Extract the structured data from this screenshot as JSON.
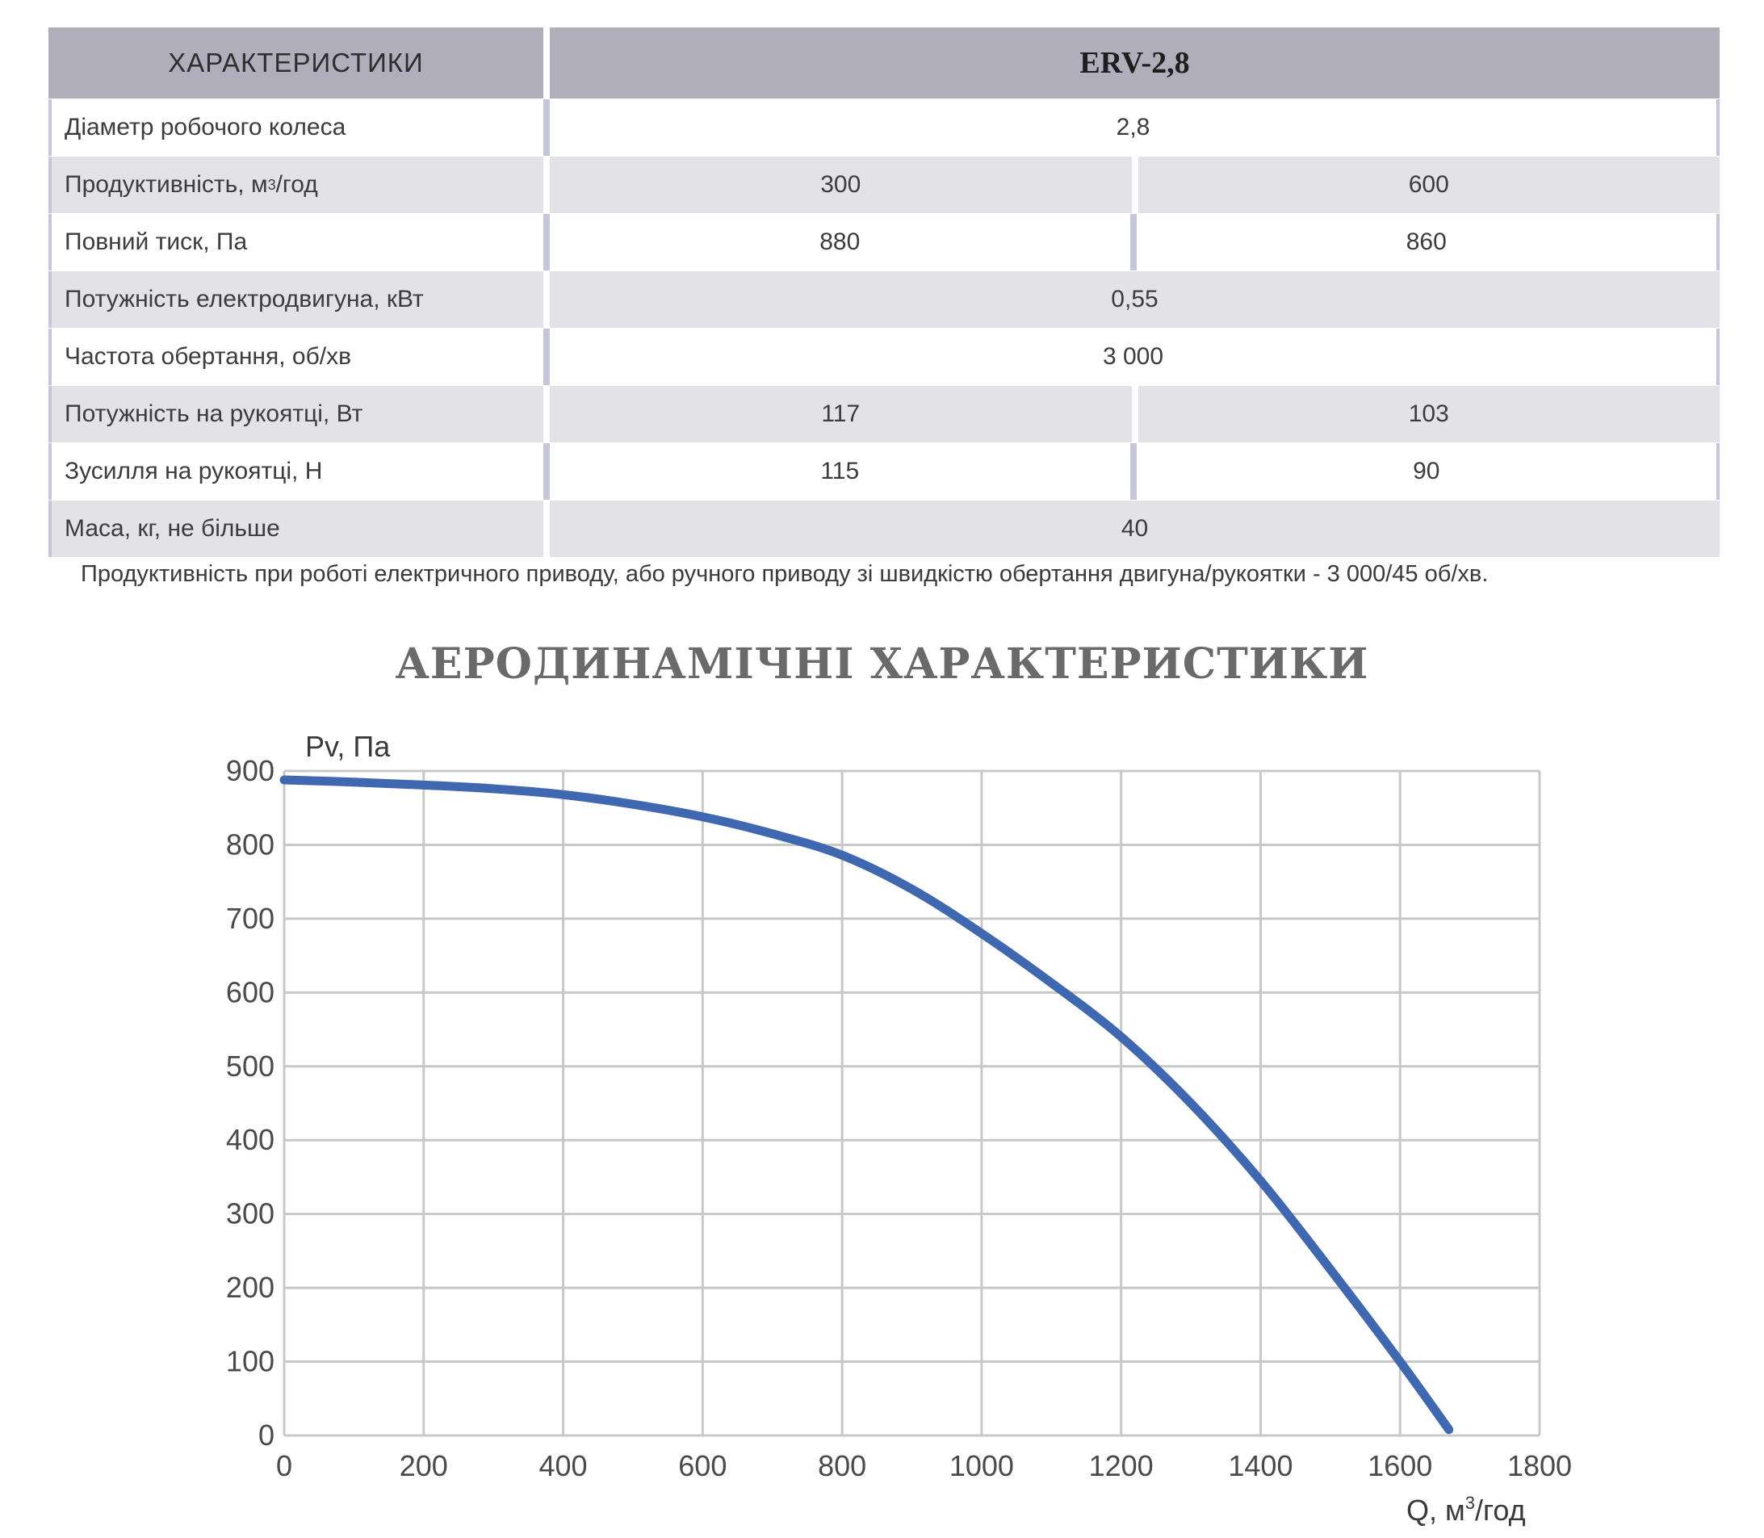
{
  "table": {
    "header": {
      "label": "ХАРАКТЕРИСТИКИ",
      "model": "ERV-2,8"
    },
    "rows": [
      {
        "label": "Діаметр робочого колеса",
        "value": "2,8"
      },
      {
        "label": "Продуктивність, м",
        "label_sup": "3",
        "label_suffix": "/год",
        "value_1": "300",
        "value_2": "600"
      },
      {
        "label": "Повний тиск, Па",
        "value_1": "880",
        "value_2": "860"
      },
      {
        "label": "Потужність електродвигуна, кВт",
        "value": "0,55"
      },
      {
        "label": "Частота обертання, об/хв",
        "value": "3 000"
      },
      {
        "label": "Потужність на рукоятці, Вт",
        "value_1": "117",
        "value_2": "103"
      },
      {
        "label": "Зусилля на рукоятці, Н",
        "value_1": "115",
        "value_2": "90"
      },
      {
        "label": "Маса, кг, не більше",
        "value": "40"
      }
    ],
    "note": "Продуктивність при роботі електричного приводу, або ручного приводу зі швидкістю обертання двигуна/рукоятки - 3 000/45 об/хв."
  },
  "section_title": "АЕРОДИНАМІЧНІ ХАРАКТЕРИСТИКИ",
  "chart_data": {
    "type": "line",
    "title": "",
    "ylabel": "Pv, Па",
    "xlabel_main": "Q, м",
    "xlabel_sup": "3",
    "xlabel_suffix": "/год",
    "xlim": [
      0,
      1800
    ],
    "ylim": [
      0,
      900
    ],
    "x_ticks": [
      0,
      200,
      400,
      600,
      800,
      1000,
      1200,
      1400,
      1600,
      1800
    ],
    "y_ticks": [
      0,
      100,
      200,
      300,
      400,
      500,
      600,
      700,
      800,
      900
    ],
    "grid": true,
    "line_color": "#3f68b0",
    "grid_color": "#c8c8c8",
    "series": [
      {
        "x": [
          0,
          100,
          200,
          300,
          400,
          500,
          600,
          700,
          800,
          900,
          1000,
          1100,
          1200,
          1300,
          1400,
          1500,
          1600,
          1670
        ],
        "values": [
          888,
          885,
          881,
          876,
          868,
          855,
          838,
          815,
          786,
          740,
          680,
          613,
          540,
          450,
          345,
          225,
          100,
          8
        ]
      }
    ]
  }
}
